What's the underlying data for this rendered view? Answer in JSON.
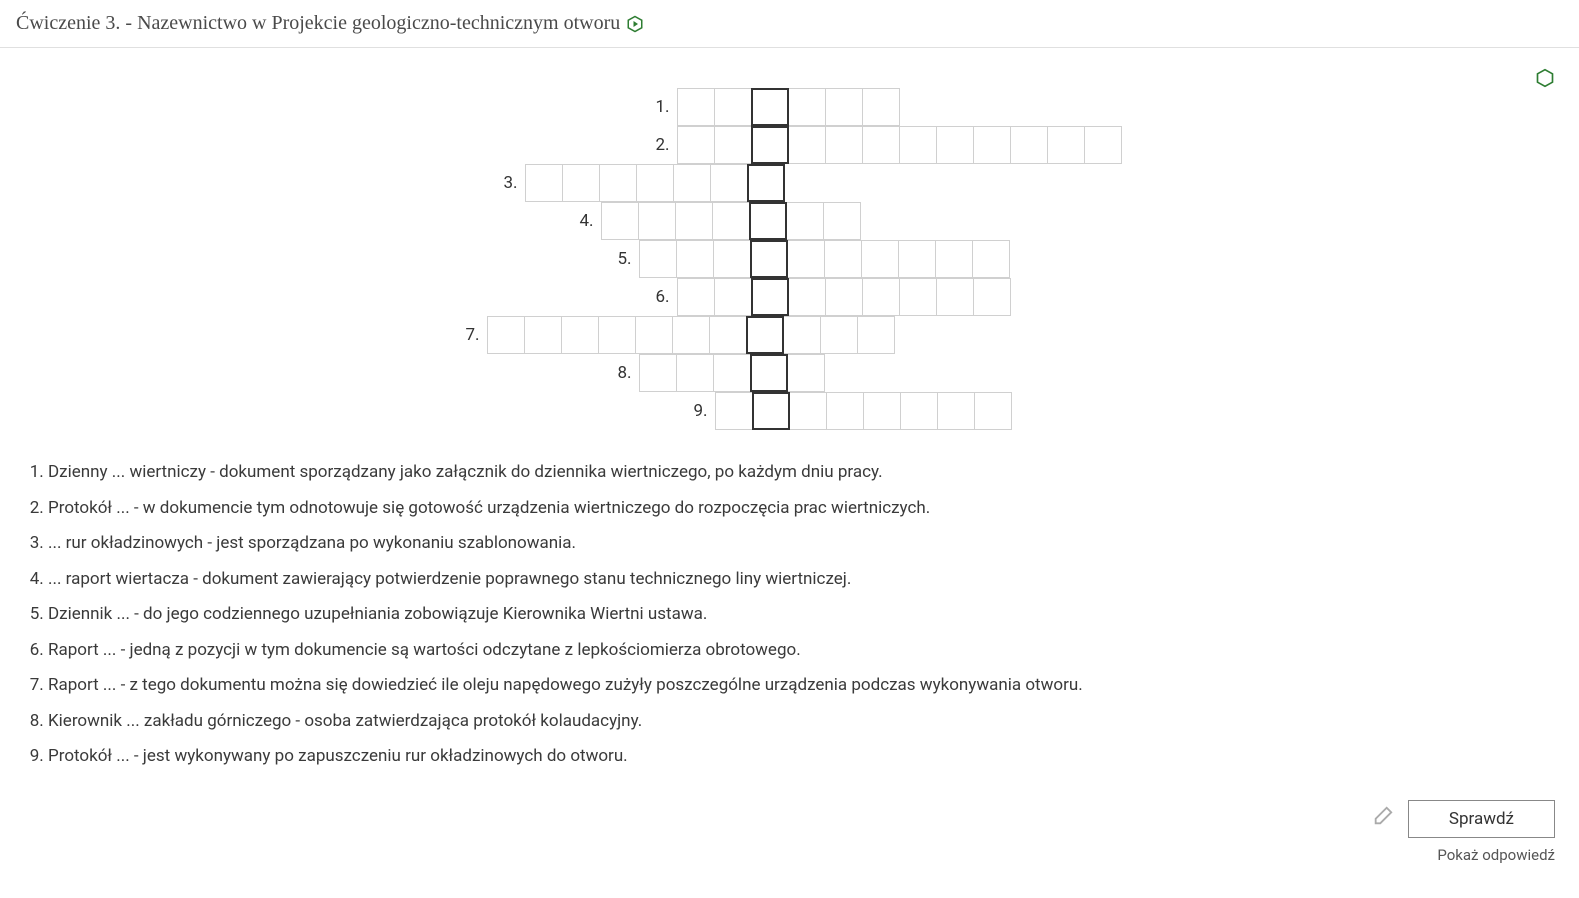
{
  "header": {
    "title": "Ćwiczenie 3. - Nazewnictwo w Projekcie geologiczno-technicznym otworu"
  },
  "hexIcon": {
    "stroke": "#2e7d32",
    "fill": "#ffffff"
  },
  "crossword": {
    "cellSize": 38,
    "borderColor": "#d0d0d0",
    "keyBorderColor": "#333333",
    "keyColumnIndex": 7,
    "rows": [
      {
        "label": "1.",
        "start": 5,
        "length": 6
      },
      {
        "label": "2.",
        "start": 5,
        "length": 12
      },
      {
        "label": "3.",
        "start": 1,
        "length": 7
      },
      {
        "label": "4.",
        "start": 3,
        "length": 7
      },
      {
        "label": "5.",
        "start": 4,
        "length": 10
      },
      {
        "label": "6.",
        "start": 5,
        "length": 9
      },
      {
        "label": "7.",
        "start": 0,
        "length": 11
      },
      {
        "label": "8.",
        "start": 4,
        "length": 5
      },
      {
        "label": "9.",
        "start": 6,
        "length": 8
      }
    ]
  },
  "clues": [
    "Dzienny ... wiertniczy - dokument sporządzany jako załącznik do dziennika wiertniczego, po każdym dniu pracy.",
    "Protokół ... - w dokumencie tym odnotowuje się gotowość urządzenia wiertniczego do rozpoczęcia prac wiertniczych.",
    "... rur okładzinowych - jest sporządzana po wykonaniu szablonowania.",
    "... raport wiertacza - dokument zawierający potwierdzenie poprawnego stanu technicznego liny wiertniczej.",
    "Dziennik ... - do jego codziennego uzupełniania zobowiązuje Kierownika Wiertni ustawa.",
    "Raport ... - jedną z pozycji w tym dokumencie są wartości odczytane z lepkościomierza obrotowego.",
    "Raport ... - z tego dokumentu można się dowiedzieć ile oleju napędowego zużyły poszczególne urządzenia podczas wykonywania otworu.",
    "Kierownik ... zakładu górniczego - osoba zatwierdzająca protokół kolaudacyjny.",
    "Protokół ... - jest wykonywany po zapuszczeniu rur okładzinowych do otworu."
  ],
  "buttons": {
    "check": "Sprawdź",
    "showAnswer": "Pokaż odpowiedź"
  },
  "colors": {
    "headerText": "#4a4a4a",
    "bodyText": "#3a3a3a",
    "divider": "#e0e0e0",
    "buttonBorder": "#888888"
  }
}
